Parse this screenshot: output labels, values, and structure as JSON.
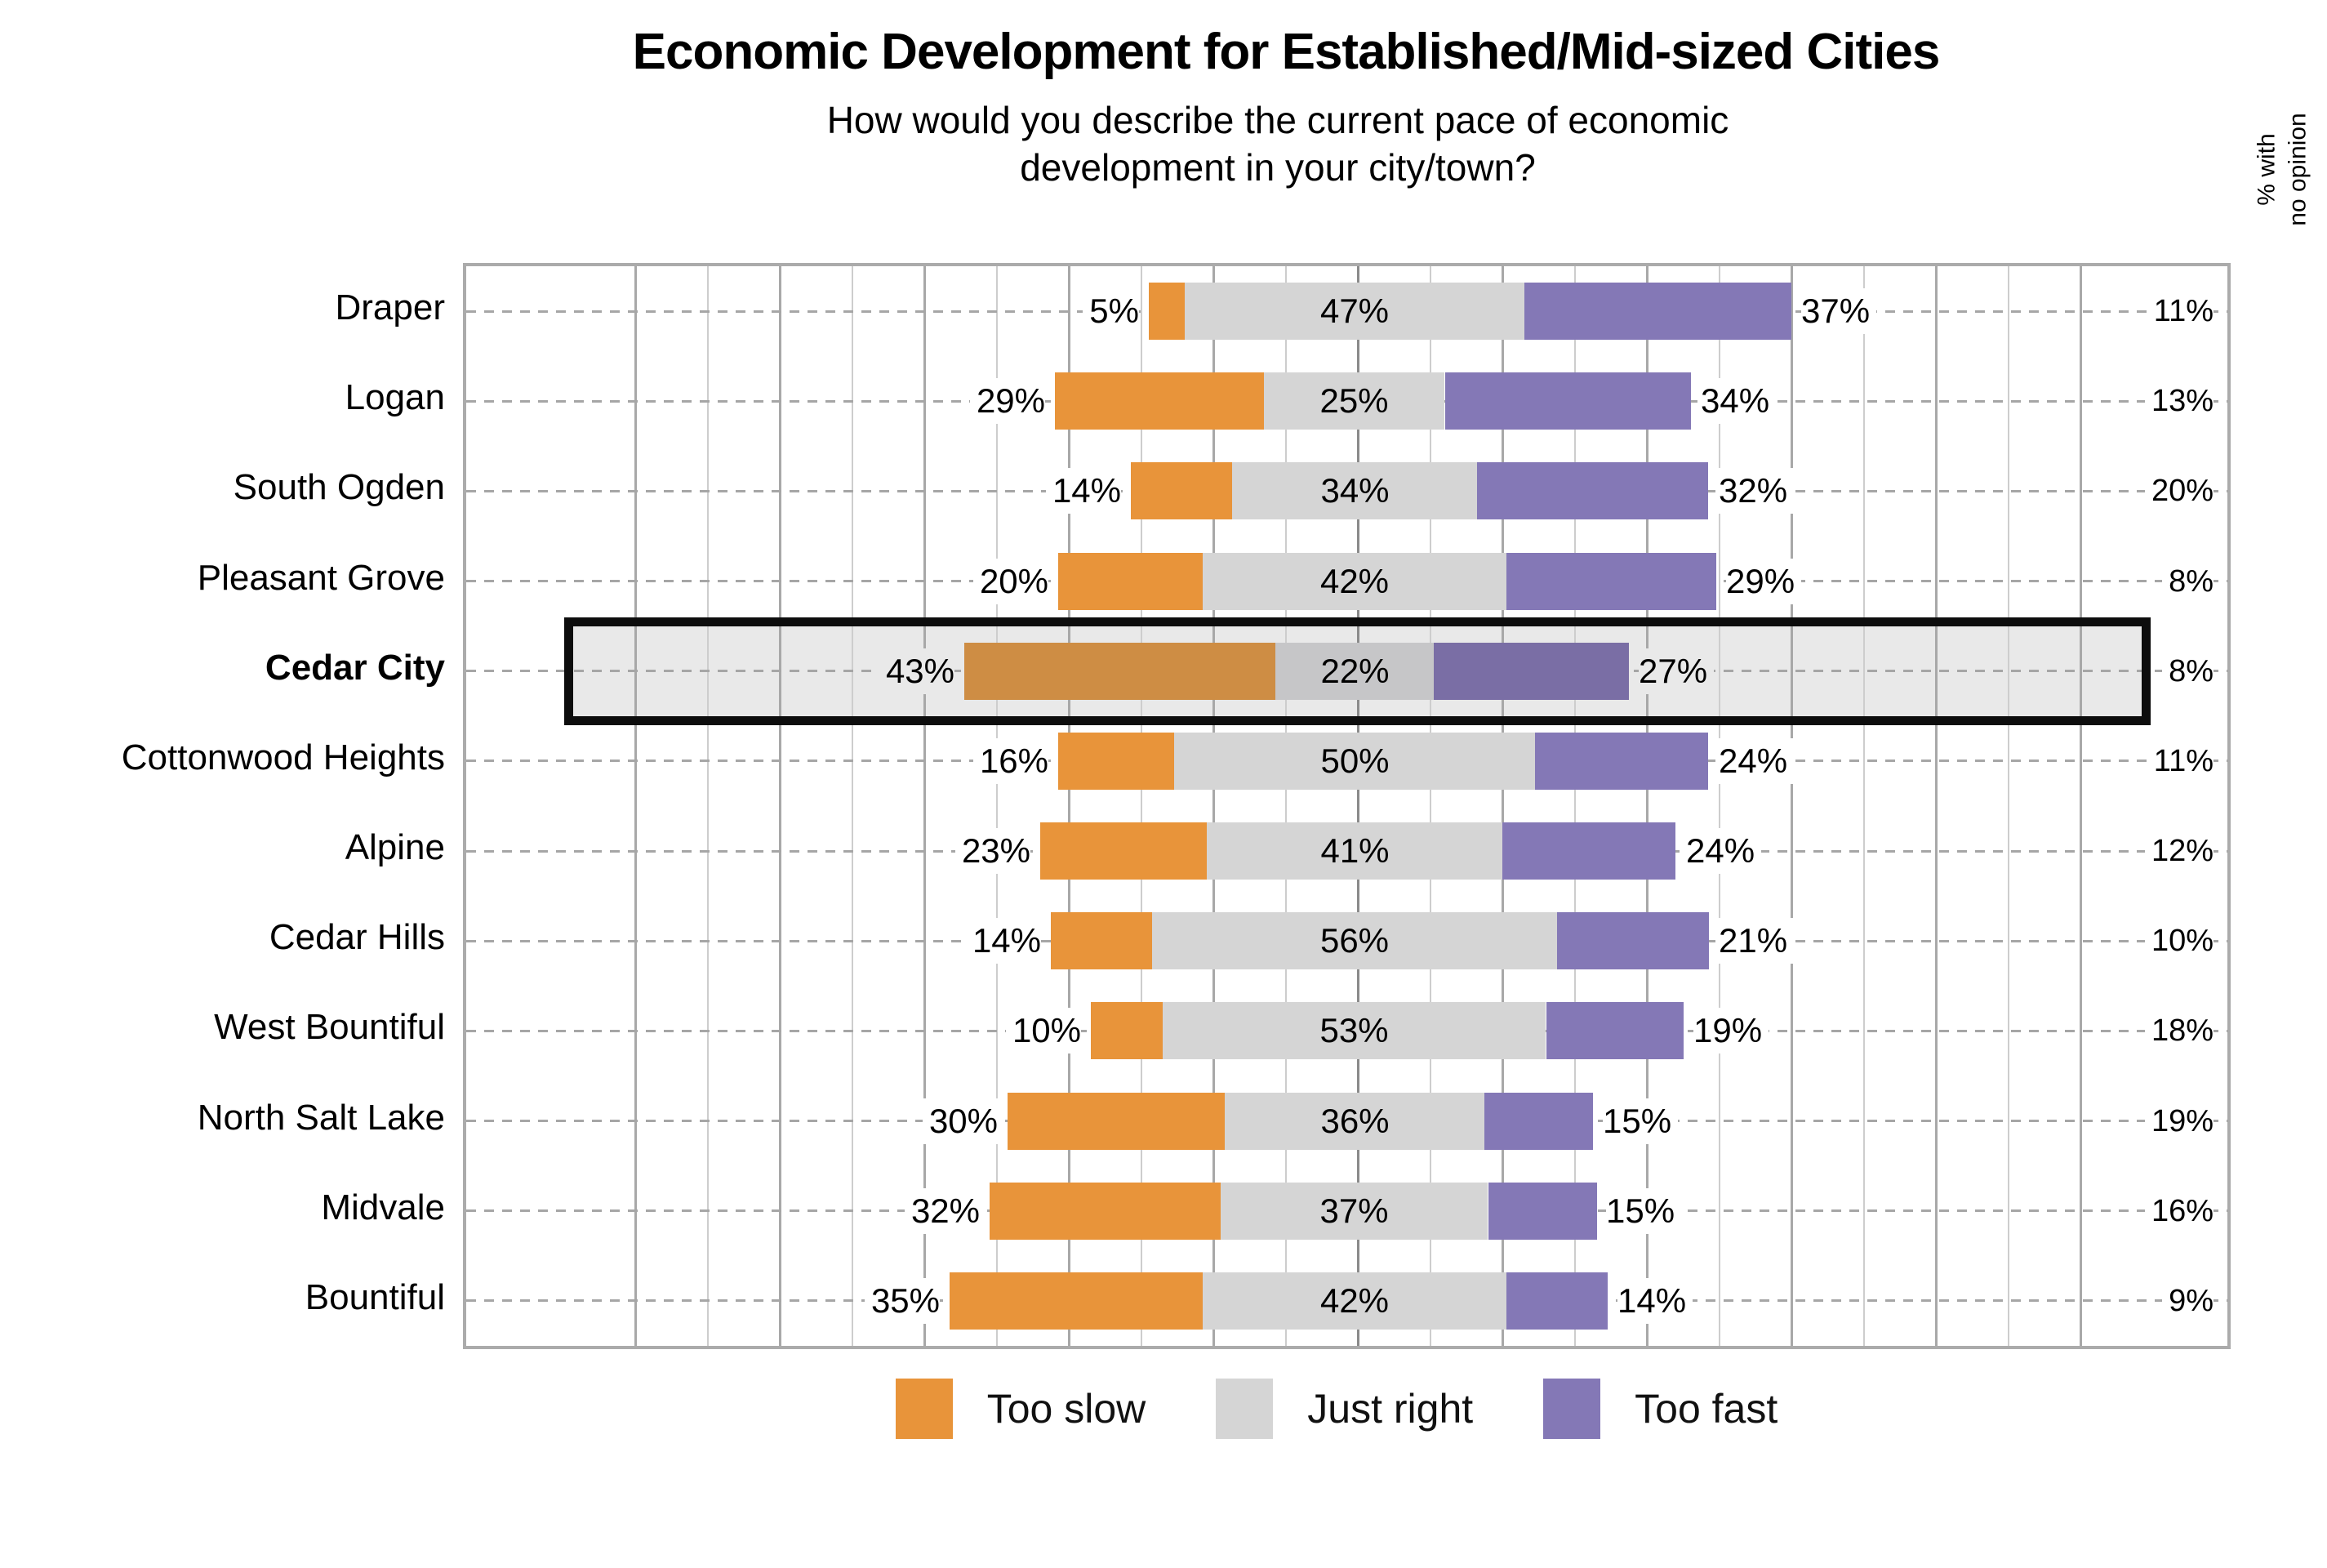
{
  "header": {
    "title": "Economic Development for Established/Mid-sized Cities",
    "subtitle_line1": "How would you describe the current pace of economic",
    "subtitle_line2": "development in your city/town?",
    "right_axis_note_line1": "% with",
    "right_axis_note_line2": "no opinion"
  },
  "legend": [
    {
      "label": "Too slow",
      "color": "#E8943A"
    },
    {
      "label": "Just right",
      "color": "#D5D5D5"
    },
    {
      "label": "Too fast",
      "color": "#8478B6"
    }
  ],
  "colors": {
    "too_slow": "#E8943A",
    "just_right": "#D5D5D5",
    "too_fast": "#8478B6",
    "highlight_too_slow": "#CE8D44",
    "highlight_just_right": "#C6C6C8",
    "highlight_too_fast": "#7A6EA5",
    "highlight_box_fill": "#e9e9e9",
    "highlight_box_border": "#0d0d0d",
    "gridline_major": "#a8a8a8",
    "gridline_minor": "#cdcdcd",
    "dashed_leader": "#a6a6a6"
  },
  "chart_data": {
    "type": "bar",
    "variant": "diverging-stacked-horizontal",
    "title": "Economic Development for Established/Mid-sized Cities",
    "subtitle": "How would you describe the current pace of economic development in your city/town?",
    "categories": [
      "Draper",
      "Logan",
      "South Ogden",
      "Pleasant Grove",
      "Cedar City",
      "Cottonwood Heights",
      "Alpine",
      "Cedar Hills",
      "West Bountiful",
      "North Salt Lake",
      "Midvale",
      "Bountiful"
    ],
    "series": [
      {
        "name": "Too slow",
        "color": "#E8943A",
        "values": [
          5,
          29,
          14,
          20,
          43,
          16,
          23,
          14,
          10,
          30,
          32,
          35
        ]
      },
      {
        "name": "Just right",
        "color": "#D5D5D5",
        "values": [
          47,
          25,
          34,
          42,
          22,
          50,
          41,
          56,
          53,
          36,
          37,
          42
        ]
      },
      {
        "name": "Too fast",
        "color": "#8478B6",
        "values": [
          37,
          34,
          32,
          29,
          27,
          24,
          24,
          21,
          19,
          15,
          15,
          14
        ]
      }
    ],
    "no_opinion_column": {
      "label": "% with no opinion",
      "values": [
        11,
        13,
        20,
        8,
        8,
        11,
        12,
        10,
        18,
        19,
        16,
        9
      ]
    },
    "value_suffix": "%",
    "highlighted_category": "Cedar City",
    "axis": {
      "unit": "percent",
      "center": 0,
      "gridline_interval": 10,
      "grid": "on"
    },
    "legend_position": "bottom",
    "legend_entries": [
      "Too slow",
      "Just right",
      "Too fast"
    ]
  }
}
